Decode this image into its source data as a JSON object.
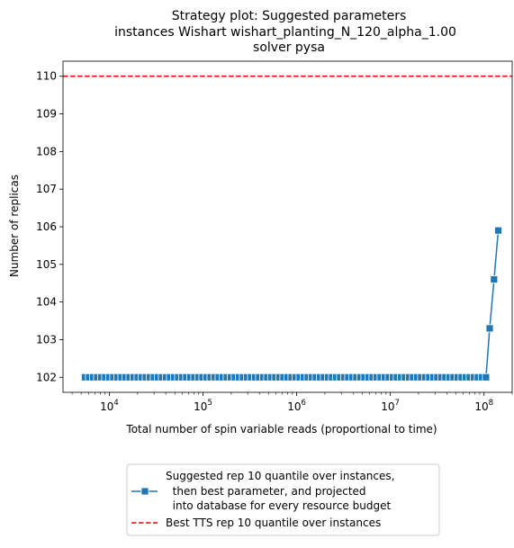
{
  "chart_data": {
    "type": "line",
    "title": [
      "Strategy plot: Suggested parameters",
      "instances Wishart wishart_planting_N_120_alpha_1.00",
      "solver pysa"
    ],
    "xlabel": "Total number of spin variable reads (proportional to time)",
    "ylabel": "Number of replicas",
    "xscale": "log",
    "xlim": [
      3200,
      200000000
    ],
    "ylim": [
      101.6,
      110.4
    ],
    "x_ticks": [
      {
        "value": 10000,
        "base": "10",
        "exp": "4"
      },
      {
        "value": 100000,
        "base": "10",
        "exp": "5"
      },
      {
        "value": 1000000,
        "base": "10",
        "exp": "6"
      },
      {
        "value": 10000000,
        "base": "10",
        "exp": "7"
      },
      {
        "value": 100000000,
        "base": "10",
        "exp": "8"
      }
    ],
    "y_ticks": [
      102,
      103,
      104,
      105,
      106,
      107,
      108,
      109,
      110
    ],
    "series": [
      {
        "name": "Suggested rep 10 quantile over instances,\n  then best parameter, and projected\n  into database for every resource budget",
        "color": "#1f77b4",
        "marker": "square",
        "x_start": 5500,
        "x_end": 105000000,
        "flat_points": 100,
        "flat_value": 102,
        "x": [
          115000000,
          128000000,
          142000000
        ],
        "values": [
          103.3,
          104.6,
          105.9
        ]
      }
    ],
    "reference_lines": [
      {
        "name": "Best TTS rep 10 quantile over instances",
        "value": 110,
        "color": "#ff0000",
        "style": "dashed"
      }
    ],
    "legend_position": "below-center"
  }
}
